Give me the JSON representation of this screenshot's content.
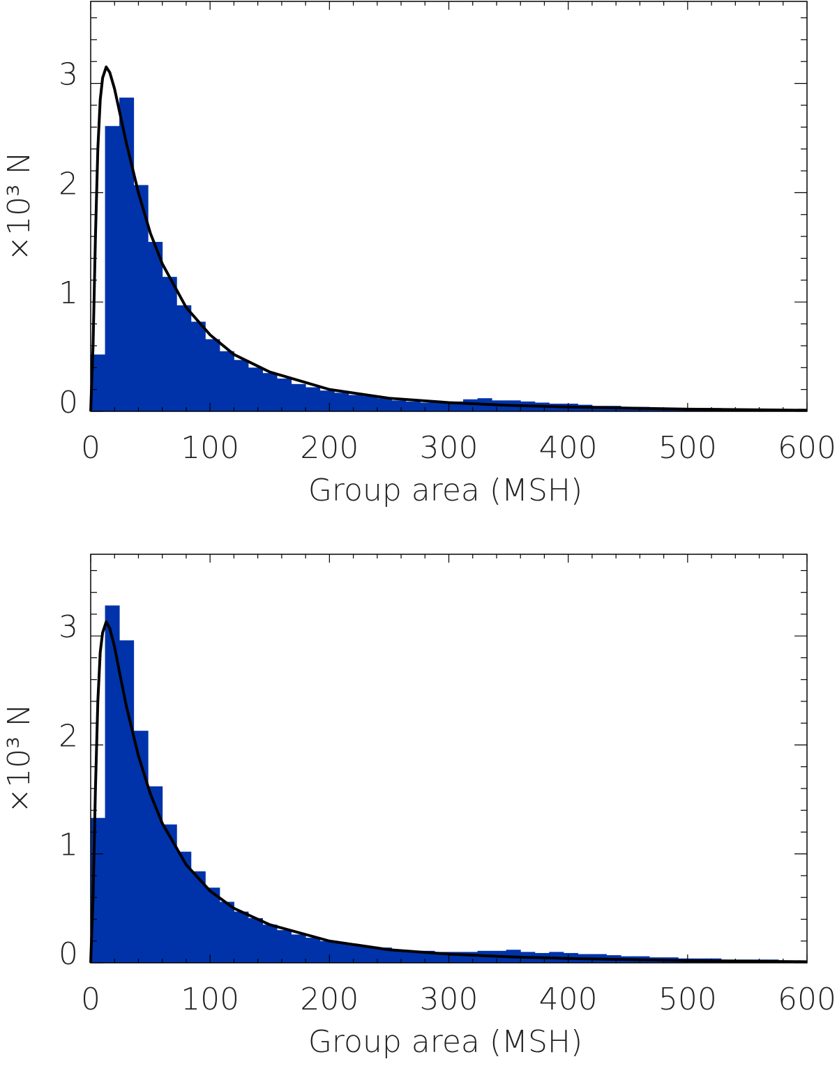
{
  "chart_data": [
    {
      "type": "histogram",
      "xlabel": "Group area (MSH)",
      "ylabel": "×10³ N",
      "bins": [
        0,
        12,
        24,
        36,
        48,
        60,
        72,
        84,
        96,
        108,
        120,
        132,
        144,
        156,
        168,
        180,
        192,
        204,
        216,
        228,
        240,
        252,
        264,
        276,
        288,
        300,
        312,
        324,
        336,
        348,
        360,
        372,
        384,
        396,
        408,
        420,
        432,
        444,
        456,
        468,
        480,
        492,
        504,
        516,
        528,
        540,
        552,
        564,
        576,
        588,
        600
      ],
      "values": [
        0.52,
        2.61,
        2.87,
        2.07,
        1.55,
        1.23,
        0.97,
        0.82,
        0.66,
        0.55,
        0.47,
        0.4,
        0.35,
        0.3,
        0.25,
        0.22,
        0.19,
        0.17,
        0.15,
        0.14,
        0.12,
        0.1,
        0.09,
        0.08,
        0.08,
        0.09,
        0.11,
        0.12,
        0.1,
        0.1,
        0.09,
        0.08,
        0.07,
        0.07,
        0.06,
        0.05,
        0.05,
        0.04,
        0.04,
        0.03,
        0.03,
        0.03,
        0.03,
        0.03,
        0.02,
        0.02,
        0.02,
        0.02,
        0.02,
        0.02
      ],
      "color": "#0033aa",
      "fit": {
        "color": "#000000",
        "x": [
          0,
          2,
          4,
          6,
          8,
          10,
          13,
          16,
          20,
          25,
          30,
          40,
          50,
          60,
          80,
          100,
          120,
          150,
          200,
          250,
          300,
          350,
          400,
          500,
          600
        ],
        "y": [
          0,
          0.6,
          1.6,
          2.4,
          2.85,
          3.05,
          3.15,
          3.1,
          2.95,
          2.7,
          2.45,
          2.0,
          1.63,
          1.35,
          0.95,
          0.7,
          0.52,
          0.36,
          0.2,
          0.12,
          0.08,
          0.055,
          0.04,
          0.02,
          0.01
        ]
      },
      "xlim": [
        0,
        600
      ],
      "ylim": [
        0,
        3.75
      ],
      "xticks": [
        0,
        100,
        200,
        300,
        400,
        500,
        600
      ],
      "yticks": [
        0,
        1,
        2,
        3
      ],
      "xminorticks": [
        20,
        40,
        60,
        80,
        120,
        140,
        160,
        180,
        220,
        240,
        260,
        280,
        320,
        340,
        360,
        380,
        420,
        440,
        460,
        480,
        520,
        540,
        560,
        580
      ],
      "yminorticks": [
        0.2,
        0.4,
        0.6,
        0.8,
        1.2,
        1.4,
        1.6,
        1.8,
        2.2,
        2.4,
        2.6,
        2.8,
        3.2,
        3.4,
        3.6
      ]
    },
    {
      "type": "histogram",
      "xlabel": "Group area (MSH)",
      "ylabel": "×10³ N",
      "bins": [
        0,
        12,
        24,
        36,
        48,
        60,
        72,
        84,
        96,
        108,
        120,
        132,
        144,
        156,
        168,
        180,
        192,
        204,
        216,
        228,
        240,
        252,
        264,
        276,
        288,
        300,
        312,
        324,
        336,
        348,
        360,
        372,
        384,
        396,
        408,
        420,
        432,
        444,
        456,
        468,
        480,
        492,
        504,
        516,
        528,
        540,
        552,
        564,
        576,
        588,
        600
      ],
      "values": [
        1.33,
        3.28,
        2.96,
        2.13,
        1.62,
        1.27,
        1.02,
        0.84,
        0.69,
        0.56,
        0.47,
        0.41,
        0.35,
        0.3,
        0.26,
        0.23,
        0.2,
        0.18,
        0.16,
        0.15,
        0.14,
        0.12,
        0.11,
        0.11,
        0.1,
        0.1,
        0.1,
        0.11,
        0.11,
        0.12,
        0.1,
        0.09,
        0.1,
        0.09,
        0.08,
        0.08,
        0.07,
        0.06,
        0.06,
        0.05,
        0.05,
        0.04,
        0.04,
        0.04,
        0.03,
        0.03,
        0.03,
        0.03,
        0.02,
        0.02
      ],
      "color": "#0033aa",
      "fit": {
        "color": "#000000",
        "x": [
          0,
          2,
          4,
          6,
          8,
          10,
          13,
          16,
          20,
          25,
          30,
          40,
          50,
          60,
          80,
          100,
          120,
          150,
          200,
          250,
          300,
          350,
          400,
          500,
          600
        ],
        "y": [
          0,
          0.6,
          1.6,
          2.4,
          2.85,
          3.03,
          3.13,
          3.07,
          2.9,
          2.62,
          2.35,
          1.9,
          1.55,
          1.28,
          0.9,
          0.66,
          0.5,
          0.35,
          0.2,
          0.12,
          0.08,
          0.055,
          0.04,
          0.02,
          0.01
        ]
      },
      "xlim": [
        0,
        600
      ],
      "ylim": [
        0,
        3.75
      ],
      "xticks": [
        0,
        100,
        200,
        300,
        400,
        500,
        600
      ],
      "yticks": [
        0,
        1,
        2,
        3
      ],
      "xminorticks": [
        20,
        40,
        60,
        80,
        120,
        140,
        160,
        180,
        220,
        240,
        260,
        280,
        320,
        340,
        360,
        380,
        420,
        440,
        460,
        480,
        520,
        540,
        560,
        580
      ],
      "yminorticks": [
        0.2,
        0.4,
        0.6,
        0.8,
        1.2,
        1.4,
        1.6,
        1.8,
        2.2,
        2.4,
        2.6,
        2.8,
        3.2,
        3.4,
        3.6
      ]
    }
  ]
}
